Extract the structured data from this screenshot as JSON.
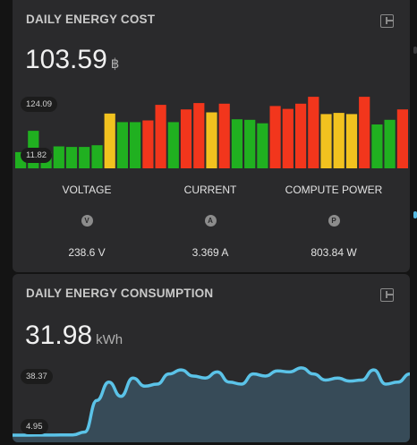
{
  "cost_card": {
    "title": "DAILY ENERGY COST",
    "value": "103.59",
    "unit": "฿",
    "max_label": "124.09",
    "min_label": "11.82",
    "icon": "calculator-icon"
  },
  "stats": [
    {
      "label": "VOLTAGE",
      "badge": "V",
      "value": "238.6 V"
    },
    {
      "label": "CURRENT",
      "badge": "A",
      "value": "3.369 A"
    },
    {
      "label": "COMPUTE POWER",
      "badge": "P",
      "value": "803.84 W"
    }
  ],
  "consumption_card": {
    "title": "DAILY ENERGY CONSUMPTION",
    "value": "31.98",
    "unit": "kWh",
    "max_label": "38.37",
    "min_label": "4.95",
    "icon": "calculator-icon"
  },
  "colors": {
    "green": "#20b020",
    "yellow": "#f2c21f",
    "red": "#f2361c",
    "line": "#5bc3e8",
    "fill": "#374b58"
  },
  "chart_data": [
    {
      "type": "bar",
      "min": 11.82,
      "max": 124.09,
      "values": [
        28,
        65,
        28,
        38,
        37,
        37,
        40,
        95,
        80,
        80,
        83,
        110,
        80,
        102,
        113,
        97,
        112,
        85,
        84,
        78,
        108,
        103,
        112,
        124,
        94,
        96,
        94,
        124,
        76,
        84,
        102
      ],
      "levels": [
        "green",
        "green",
        "green",
        "green",
        "green",
        "green",
        "green",
        "yellow",
        "green",
        "green",
        "red",
        "red",
        "green",
        "red",
        "red",
        "yellow",
        "red",
        "green",
        "green",
        "green",
        "red",
        "red",
        "red",
        "red",
        "yellow",
        "yellow",
        "yellow",
        "red",
        "green",
        "green",
        "red"
      ]
    },
    {
      "type": "area",
      "min": 4.95,
      "max": 38.37,
      "values": [
        4.95,
        4.95,
        5.0,
        5.0,
        5.05,
        5.05,
        6.5,
        22,
        31,
        24,
        33,
        29,
        30,
        35,
        37,
        34,
        33,
        36,
        31,
        30,
        35,
        34,
        36.5,
        36,
        38,
        35,
        32,
        33,
        31.5,
        32,
        37,
        30,
        31,
        35
      ]
    }
  ]
}
